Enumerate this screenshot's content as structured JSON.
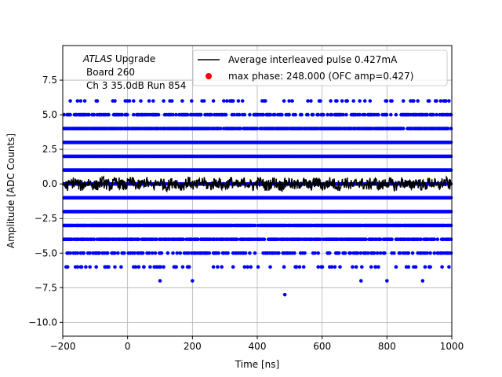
{
  "chart_data": {
    "type": "scatter",
    "title": "",
    "xlabel": "Time [ns]",
    "ylabel": "Amplitude [ADC Counts]",
    "xlim": [
      -200,
      1000
    ],
    "ylim": [
      -11,
      10
    ],
    "grid": true,
    "x_ticks": [
      -200,
      0,
      200,
      400,
      600,
      800,
      1000
    ],
    "x_tick_labels": [
      "−200",
      "0",
      "200",
      "400",
      "600",
      "800",
      "1000"
    ],
    "y_ticks": [
      -10,
      -7.5,
      -5,
      -2.5,
      0,
      2.5,
      5,
      7.5
    ],
    "y_tick_labels": [
      "−10.0",
      "−7.5",
      "−5.0",
      "−2.5",
      "0.0",
      "2.5",
      "5.0",
      "7.5"
    ],
    "annotation": {
      "line1_italic": "ATLAS",
      "line1_rest": " Upgrade",
      "line2": "Board 260",
      "line3": "Ch 3 35.0dB  Run 854"
    },
    "legend": {
      "placement": "top-right",
      "entries": [
        {
          "label": "Average interleaved pulse 0.427mA",
          "marker": "line",
          "color": "#000000"
        },
        {
          "label": "max phase: 248.000 (OFC amp=0.427)",
          "marker": "dot",
          "color": "#ff0000"
        }
      ]
    },
    "series": [
      {
        "name": "samples",
        "color": "#0000ff",
        "levels": [
          {
            "y": 6,
            "density": 0.22
          },
          {
            "y": 5,
            "density": 0.55
          },
          {
            "y": 4,
            "density": 0.85
          },
          {
            "y": 3,
            "density": 1.0
          },
          {
            "y": 2,
            "density": 1.0
          },
          {
            "y": 1,
            "density": 1.0
          },
          {
            "y": 0,
            "density": 1.0
          },
          {
            "y": -1,
            "density": 1.0
          },
          {
            "y": -2,
            "density": 1.0
          },
          {
            "y": -3,
            "density": 0.95
          },
          {
            "y": -4,
            "density": 0.8
          },
          {
            "y": -5,
            "density": 0.45
          },
          {
            "y": -6,
            "density": 0.15
          }
        ],
        "extra_points": [
          {
            "x": -185,
            "y": -6
          },
          {
            "x": -70,
            "y": -6
          },
          {
            "x": -20,
            "y": -6
          },
          {
            "x": 25,
            "y": -6
          },
          {
            "x": 50,
            "y": -6
          },
          {
            "x": 150,
            "y": -6
          },
          {
            "x": 170,
            "y": -6
          },
          {
            "x": 190,
            "y": -6
          },
          {
            "x": 370,
            "y": -6
          },
          {
            "x": 380,
            "y": -6
          },
          {
            "x": 440,
            "y": -6
          },
          {
            "x": 520,
            "y": -6
          },
          {
            "x": 630,
            "y": -6
          },
          {
            "x": 705,
            "y": -6
          },
          {
            "x": 765,
            "y": -6
          },
          {
            "x": 860,
            "y": -6
          },
          {
            "x": 970,
            "y": -6
          },
          {
            "x": 100,
            "y": -7
          },
          {
            "x": 200,
            "y": -7
          },
          {
            "x": 720,
            "y": -7
          },
          {
            "x": 800,
            "y": -7
          },
          {
            "x": 910,
            "y": -7
          },
          {
            "x": 485,
            "y": -8
          }
        ]
      },
      {
        "name": "Average interleaved pulse 0.427mA",
        "type": "line",
        "color": "#000000",
        "description_values": "noise around 0 between -0.6 and 0.6",
        "baseline": 0,
        "amplitude": 0.6
      },
      {
        "name": "max phase: 248.000 (OFC amp=0.427)",
        "type": "point",
        "color": "#ff0000",
        "x": 248,
        "y": 0.427
      }
    ]
  }
}
